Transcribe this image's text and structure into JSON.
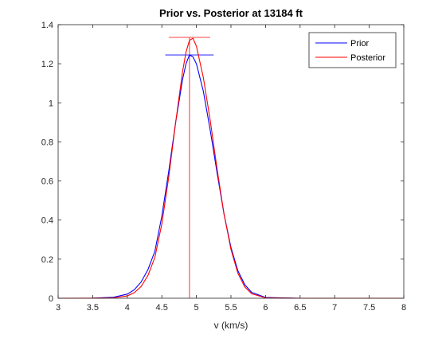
{
  "chart_data": {
    "type": "line",
    "title": "Prior vs. Posterior at 13184 ft",
    "xlabel": "v (km/s)",
    "ylabel": "",
    "xlim": [
      3,
      8
    ],
    "ylim": [
      0,
      1.4
    ],
    "xticks": [
      "3",
      "3.5",
      "4",
      "4.5",
      "5",
      "5.5",
      "6",
      "6.5",
      "7",
      "7.5",
      "8"
    ],
    "yticks": [
      "0",
      "0.2",
      "0.4",
      "0.6",
      "0.8",
      "1",
      "1.2",
      "1.4"
    ],
    "grid": false,
    "legend_position": "top-right",
    "series": [
      {
        "name": "Prior",
        "color": "#0000ff",
        "x": [
          3.0,
          3.5,
          3.8,
          4.0,
          4.1,
          4.2,
          4.3,
          4.4,
          4.5,
          4.6,
          4.7,
          4.8,
          4.85,
          4.9,
          4.95,
          5.0,
          5.1,
          5.2,
          5.3,
          5.4,
          5.5,
          5.6,
          5.7,
          5.8,
          6.0,
          6.5,
          7.0,
          8.0
        ],
        "y": [
          0.0,
          0.0004,
          0.005,
          0.021,
          0.043,
          0.083,
          0.147,
          0.241,
          0.42,
          0.65,
          0.9,
          1.12,
          1.2,
          1.245,
          1.235,
          1.2,
          1.06,
          0.86,
          0.64,
          0.43,
          0.26,
          0.141,
          0.069,
          0.03,
          0.004,
          0.0,
          0.0,
          0.0
        ],
        "peak": {
          "x": 4.9,
          "y": 1.245,
          "marker_xrange": [
            4.55,
            5.25
          ]
        }
      },
      {
        "name": "Posterior",
        "color": "#ff0000",
        "x": [
          3.0,
          3.5,
          3.8,
          4.0,
          4.1,
          4.2,
          4.3,
          4.4,
          4.5,
          4.6,
          4.7,
          4.8,
          4.85,
          4.9,
          4.95,
          5.0,
          5.1,
          5.2,
          5.3,
          5.4,
          5.5,
          5.6,
          5.7,
          5.8,
          6.0,
          6.5,
          7.0,
          8.0
        ],
        "y": [
          0.0,
          0.0001,
          0.002,
          0.012,
          0.028,
          0.06,
          0.117,
          0.21,
          0.38,
          0.62,
          0.9,
          1.16,
          1.26,
          1.32,
          1.33,
          1.29,
          1.13,
          0.91,
          0.66,
          0.43,
          0.25,
          0.128,
          0.058,
          0.023,
          0.002,
          0.0,
          0.0,
          0.0
        ],
        "peak": {
          "x": 4.9,
          "y": 1.335,
          "marker_xrange": [
            4.6,
            5.2
          ]
        }
      }
    ],
    "vertical_marker": {
      "x": 4.9,
      "color": "#ff0000"
    }
  }
}
